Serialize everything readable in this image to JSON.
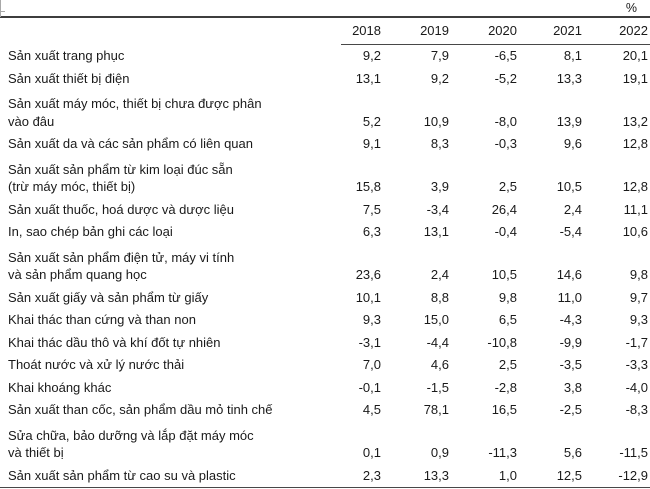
{
  "unit_label": "%",
  "chart_data": {
    "type": "table",
    "unit": "%",
    "columns": [
      "2018",
      "2019",
      "2020",
      "2021",
      "2022"
    ],
    "rows": [
      {
        "label_lines": [
          "Sản xuất trang phục"
        ],
        "values": [
          "9,2",
          "7,9",
          "-6,5",
          "8,1",
          "20,1"
        ]
      },
      {
        "label_lines": [
          "Sản xuất thiết bị điện"
        ],
        "values": [
          "13,1",
          "9,2",
          "-5,2",
          "13,3",
          "19,1"
        ]
      },
      {
        "label_lines": [
          "Sản xuất máy móc, thiết bị chưa được phân",
          "vào đâu"
        ],
        "values": [
          "5,2",
          "10,9",
          "-8,0",
          "13,9",
          "13,2"
        ]
      },
      {
        "label_lines": [
          "Sản xuất da và các sản phẩm có liên quan"
        ],
        "values": [
          "9,1",
          "8,3",
          "-0,3",
          "9,6",
          "12,8"
        ]
      },
      {
        "label_lines": [
          "Sản xuất sản phẩm từ kim loại đúc sẵn",
          "(trừ máy móc, thiết bị)"
        ],
        "values": [
          "15,8",
          "3,9",
          "2,5",
          "10,5",
          "12,8"
        ]
      },
      {
        "label_lines": [
          "Sản xuất thuốc, hoá dược và dược liệu"
        ],
        "values": [
          "7,5",
          "-3,4",
          "26,4",
          "2,4",
          "11,1"
        ]
      },
      {
        "label_lines": [
          "In, sao chép bản ghi các loại"
        ],
        "values": [
          "6,3",
          "13,1",
          "-0,4",
          "-5,4",
          "10,6"
        ]
      },
      {
        "label_lines": [
          "Sản xuất sản phẩm điện tử, máy vi tính",
          "và sản phẩm quang học"
        ],
        "values": [
          "23,6",
          "2,4",
          "10,5",
          "14,6",
          "9,8"
        ]
      },
      {
        "label_lines": [
          "Sản xuất giấy và sản phẩm từ giấy"
        ],
        "values": [
          "10,1",
          "8,8",
          "9,8",
          "11,0",
          "9,7"
        ]
      },
      {
        "label_lines": [
          "Khai thác than cứng và than non"
        ],
        "values": [
          "9,3",
          "15,0",
          "6,5",
          "-4,3",
          "9,3"
        ]
      },
      {
        "label_lines": [
          "Khai thác dầu thô và khí đốt tự nhiên"
        ],
        "values": [
          "-3,1",
          "-4,4",
          "-10,8",
          "-9,9",
          "-1,7"
        ]
      },
      {
        "label_lines": [
          "Thoát nước và xử lý nước thải"
        ],
        "values": [
          "7,0",
          "4,6",
          "2,5",
          "-3,5",
          "-3,3"
        ]
      },
      {
        "label_lines": [
          "Khai khoáng khác"
        ],
        "values": [
          "-0,1",
          "-1,5",
          "-2,8",
          "3,8",
          "-4,0"
        ]
      },
      {
        "label_lines": [
          "Sản xuất than cốc, sản phẩm dầu mỏ tinh chế"
        ],
        "values": [
          "4,5",
          "78,1",
          "16,5",
          "-2,5",
          "-8,3"
        ]
      },
      {
        "label_lines": [
          "Sửa chữa, bảo dưỡng và lắp đặt máy móc",
          "và thiết bị"
        ],
        "values": [
          "0,1",
          "0,9",
          "-11,3",
          "5,6",
          "-11,5"
        ]
      },
      {
        "label_lines": [
          "Sản xuất sản phẩm từ cao su và plastic"
        ],
        "values": [
          "2,3",
          "13,3",
          "1,0",
          "12,5",
          "-12,9"
        ]
      }
    ]
  },
  "colors": {
    "rule_dark": "#3d3d3d",
    "rule_mid": "#484848",
    "text": "#1a1a1a",
    "handle_gray": "#a8a8a8"
  }
}
